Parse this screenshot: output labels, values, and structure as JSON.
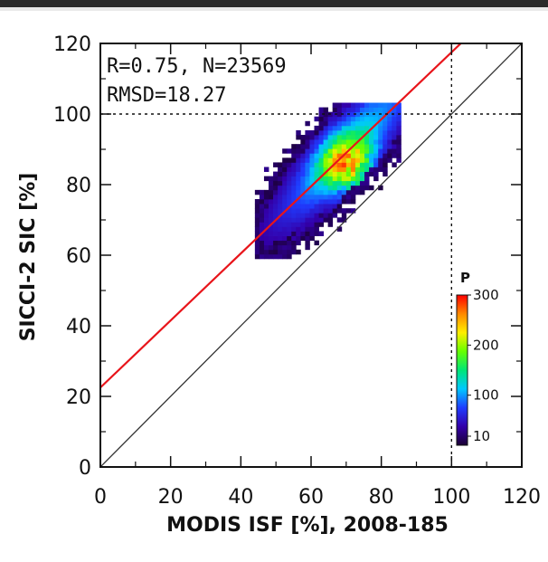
{
  "chart_data": {
    "type": "heatmap",
    "title": "",
    "xlabel": "MODIS ISF [%], 2008-185",
    "ylabel": "SICCI-2 SIC [%]",
    "xlim": [
      0,
      120
    ],
    "ylim": [
      0,
      120
    ],
    "x_ticks": [
      0,
      20,
      40,
      60,
      80,
      100,
      120
    ],
    "y_ticks": [
      0,
      20,
      40,
      60,
      80,
      100,
      120
    ],
    "annotations": [
      "R=0.75, N=23569",
      "RMSD=18.27"
    ],
    "statistics": {
      "R": 0.75,
      "N": 23569,
      "RMSD": 18.27
    },
    "fit_line": {
      "intercept": 22.5,
      "slope": 0.95,
      "color": "#e8141a"
    },
    "identity_line": {
      "from": [
        0,
        0
      ],
      "to": [
        120,
        120
      ],
      "color": "#333333"
    },
    "reference_lines": {
      "x": 100,
      "y": 100,
      "style": "dotted"
    },
    "density_cloud": {
      "x_range": [
        44,
        85
      ],
      "y_range": [
        59,
        103
      ],
      "core_center": [
        70,
        85
      ]
    },
    "colorbar": {
      "label": "P",
      "ticks": [
        10,
        100,
        200,
        300
      ],
      "range": [
        0,
        300
      ],
      "colors": [
        "#1a0033",
        "#3300aa",
        "#1f3cff",
        "#00c8ff",
        "#00e676",
        "#66ff00",
        "#ffee00",
        "#ff8800",
        "#ff0000"
      ]
    }
  }
}
